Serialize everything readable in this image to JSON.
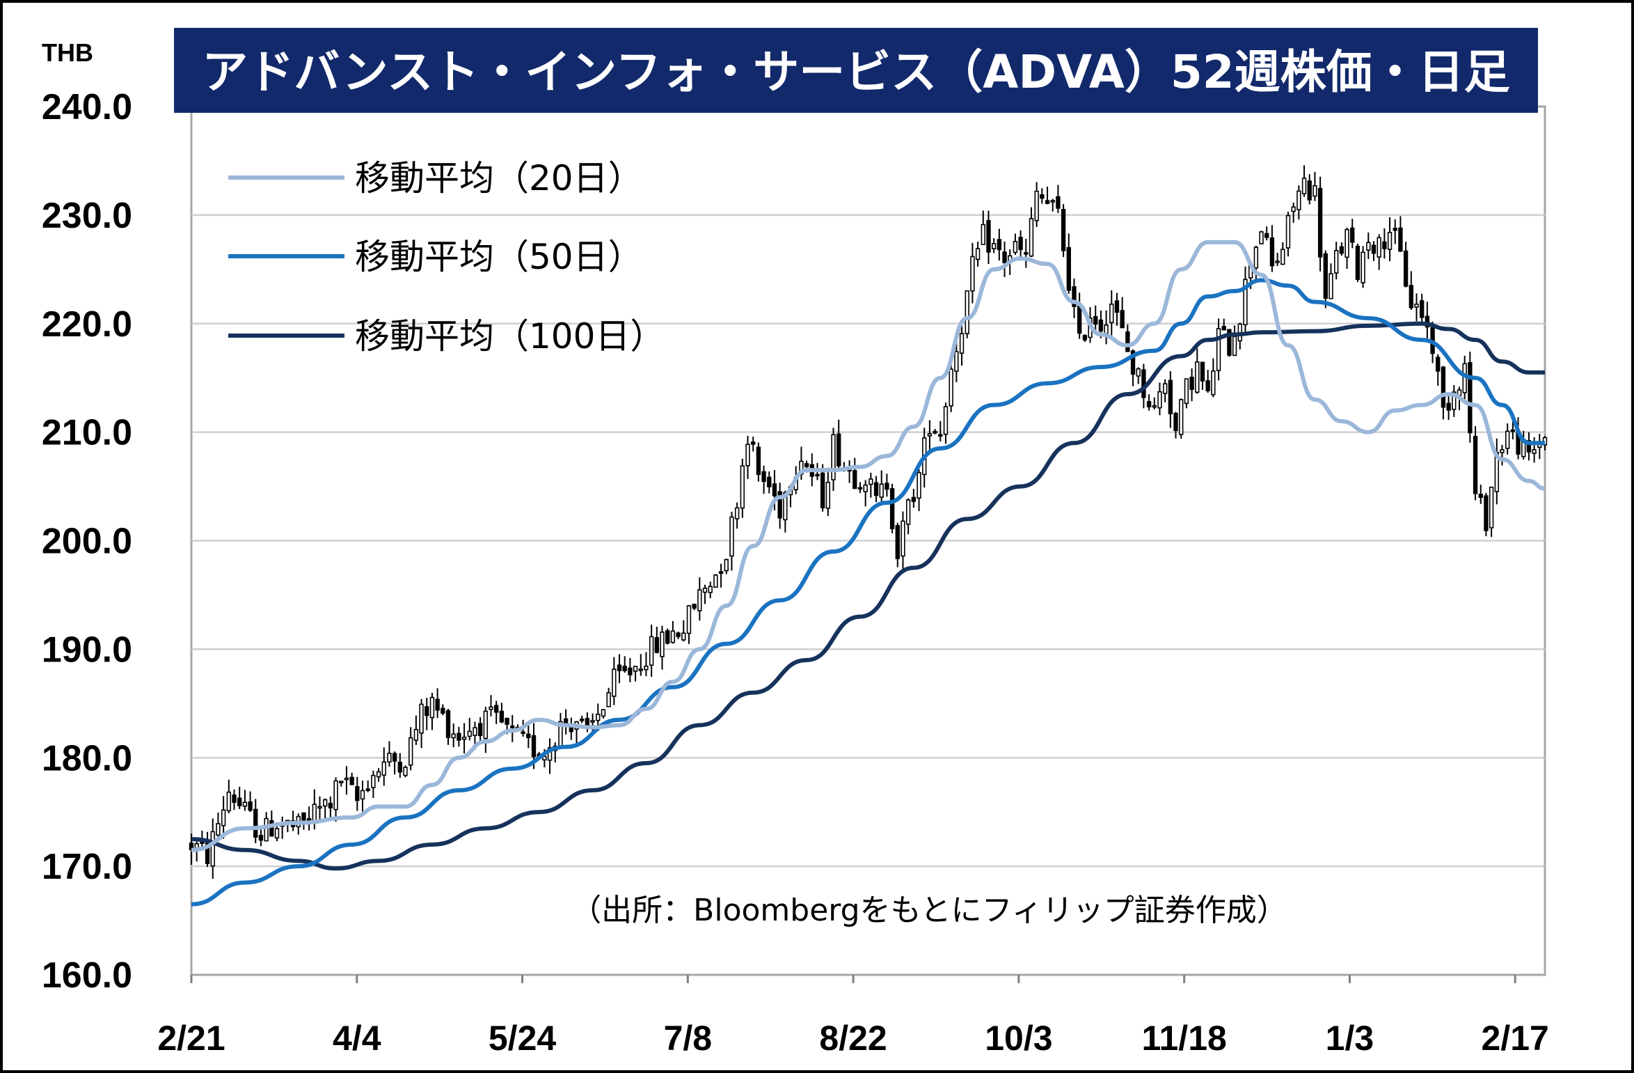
{
  "chart_data": {
    "type": "candlestick",
    "title": "アドバンスト・インフォ・サービス（ADVA）52週株価・日足",
    "unit": "THB",
    "ylim": [
      160,
      240
    ],
    "yticks": [
      "240.0",
      "230.0",
      "220.0",
      "210.0",
      "200.0",
      "190.0",
      "180.0",
      "170.0",
      "160.0"
    ],
    "xticks": [
      "2/21",
      "4/4",
      "5/24",
      "7/8",
      "8/22",
      "10/3",
      "11/18",
      "1/3",
      "2/17"
    ],
    "grid": true,
    "legend_position": "top-left",
    "series": [
      {
        "name": "移動平均（20日）",
        "color": "#9bb7d9",
        "points": [
          [
            0,
            171.5
          ],
          [
            10,
            173.5
          ],
          [
            20,
            174.0
          ],
          [
            30,
            174.5
          ],
          [
            35,
            175.5
          ],
          [
            40,
            175.5
          ],
          [
            45,
            177.5
          ],
          [
            50,
            180.0
          ],
          [
            55,
            181.5
          ],
          [
            60,
            182.5
          ],
          [
            65,
            183.5
          ],
          [
            70,
            183.0
          ],
          [
            75,
            182.8
          ],
          [
            80,
            183.0
          ],
          [
            85,
            184.5
          ],
          [
            90,
            187.0
          ],
          [
            95,
            190.0
          ],
          [
            100,
            194.0
          ],
          [
            105,
            199.5
          ],
          [
            110,
            204.0
          ],
          [
            115,
            206.5
          ],
          [
            120,
            206.5
          ],
          [
            125,
            206.8
          ],
          [
            130,
            207.8
          ],
          [
            135,
            210.5
          ],
          [
            140,
            215.0
          ],
          [
            145,
            220.5
          ],
          [
            150,
            225.0
          ],
          [
            155,
            226.0
          ],
          [
            160,
            225.5
          ],
          [
            165,
            222.0
          ],
          [
            170,
            219.0
          ],
          [
            175,
            218.0
          ],
          [
            180,
            220.0
          ],
          [
            185,
            225.0
          ],
          [
            190,
            227.5
          ],
          [
            195,
            227.5
          ],
          [
            200,
            224.5
          ],
          [
            205,
            218.0
          ],
          [
            210,
            213.0
          ],
          [
            215,
            211.0
          ],
          [
            220,
            210.0
          ],
          [
            225,
            212.0
          ],
          [
            230,
            212.5
          ],
          [
            235,
            213.5
          ],
          [
            240,
            212.5
          ],
          [
            245,
            207.5
          ],
          [
            250,
            205.5
          ],
          [
            253,
            204.8
          ]
        ]
      },
      {
        "name": "移動平均（50日）",
        "color": "#1a73c1",
        "points": [
          [
            0,
            166.5
          ],
          [
            10,
            168.5
          ],
          [
            20,
            170.0
          ],
          [
            30,
            172.0
          ],
          [
            40,
            174.5
          ],
          [
            50,
            177.0
          ],
          [
            60,
            179.0
          ],
          [
            70,
            181.0
          ],
          [
            80,
            183.5
          ],
          [
            90,
            186.5
          ],
          [
            100,
            190.5
          ],
          [
            110,
            194.5
          ],
          [
            120,
            199.0
          ],
          [
            130,
            203.5
          ],
          [
            140,
            208.5
          ],
          [
            150,
            212.5
          ],
          [
            160,
            214.5
          ],
          [
            170,
            216.0
          ],
          [
            180,
            217.5
          ],
          [
            185,
            220.0
          ],
          [
            190,
            222.5
          ],
          [
            195,
            223.0
          ],
          [
            200,
            224.0
          ],
          [
            205,
            223.5
          ],
          [
            210,
            222.0
          ],
          [
            220,
            220.5
          ],
          [
            230,
            218.5
          ],
          [
            240,
            215.0
          ],
          [
            245,
            212.5
          ],
          [
            250,
            209.0
          ],
          [
            253,
            209.0
          ]
        ]
      },
      {
        "name": "移動平均（100日）",
        "color": "#16325c",
        "points": [
          [
            0,
            172.5
          ],
          [
            10,
            171.5
          ],
          [
            20,
            170.5
          ],
          [
            27,
            169.8
          ],
          [
            35,
            170.5
          ],
          [
            45,
            172.0
          ],
          [
            55,
            173.5
          ],
          [
            65,
            175.0
          ],
          [
            75,
            177.0
          ],
          [
            85,
            179.5
          ],
          [
            95,
            183.0
          ],
          [
            105,
            186.0
          ],
          [
            115,
            189.0
          ],
          [
            125,
            193.0
          ],
          [
            135,
            197.5
          ],
          [
            145,
            202.0
          ],
          [
            155,
            205.0
          ],
          [
            165,
            209.0
          ],
          [
            175,
            213.5
          ],
          [
            185,
            217.0
          ],
          [
            190,
            218.5
          ],
          [
            195,
            219.0
          ],
          [
            200,
            219.2
          ],
          [
            210,
            219.3
          ],
          [
            220,
            219.8
          ],
          [
            230,
            220.0
          ],
          [
            235,
            219.5
          ],
          [
            240,
            218.5
          ],
          [
            245,
            216.5
          ],
          [
            250,
            215.5
          ],
          [
            253,
            215.5
          ]
        ]
      }
    ],
    "candles_anchor": [
      [
        0,
        172.0
      ],
      [
        3,
        171.0
      ],
      [
        5,
        174.0
      ],
      [
        7,
        177.0
      ],
      [
        10,
        175.0
      ],
      [
        13,
        173.0
      ],
      [
        16,
        174.0
      ],
      [
        20,
        173.5
      ],
      [
        23,
        175.0
      ],
      [
        26,
        176.0
      ],
      [
        28,
        178.0
      ],
      [
        31,
        176.0
      ],
      [
        33,
        178.0
      ],
      [
        36,
        179.5
      ],
      [
        40,
        180.0
      ],
      [
        43,
        184.0
      ],
      [
        45,
        185.0
      ],
      [
        48,
        183.0
      ],
      [
        50,
        182.0
      ],
      [
        53,
        183.0
      ],
      [
        56,
        183.5
      ],
      [
        58,
        183.0
      ],
      [
        60,
        182.0
      ],
      [
        63,
        181.0
      ],
      [
        66,
        180.5
      ],
      [
        69,
        183.0
      ],
      [
        72,
        183.5
      ],
      [
        74,
        182.0
      ],
      [
        76,
        184.0
      ],
      [
        79,
        187.0
      ],
      [
        82,
        188.0
      ],
      [
        86,
        190.0
      ],
      [
        90,
        191.5
      ],
      [
        92,
        192.0
      ],
      [
        95,
        195.0
      ],
      [
        98,
        197.0
      ],
      [
        100,
        199.0
      ],
      [
        102,
        204.0
      ],
      [
        104,
        210.0
      ],
      [
        106,
        206.0
      ],
      [
        108,
        205.0
      ],
      [
        110,
        203.0
      ],
      [
        112,
        206.0
      ],
      [
        114,
        208.0
      ],
      [
        116,
        206.0
      ],
      [
        118,
        204.0
      ],
      [
        120,
        209.0
      ],
      [
        122,
        207.0
      ],
      [
        124,
        206.0
      ],
      [
        126,
        206.0
      ],
      [
        128,
        203.5
      ],
      [
        130,
        205.5
      ],
      [
        132,
        199.0
      ],
      [
        134,
        203.0
      ],
      [
        136,
        206.0
      ],
      [
        138,
        211.0
      ],
      [
        140,
        210.0
      ],
      [
        142,
        216.0
      ],
      [
        144,
        220.0
      ],
      [
        146,
        225.0
      ],
      [
        148,
        228.0
      ],
      [
        150,
        227.0
      ],
      [
        152,
        226.0
      ],
      [
        154,
        227.0
      ],
      [
        156,
        226.0
      ],
      [
        158,
        232.0
      ],
      [
        160,
        231.0
      ],
      [
        162,
        230.0
      ],
      [
        164,
        224.0
      ],
      [
        166,
        218.0
      ],
      [
        168,
        221.0
      ],
      [
        170,
        220.0
      ],
      [
        172,
        222.0
      ],
      [
        174,
        219.0
      ],
      [
        176,
        216.0
      ],
      [
        178,
        214.0
      ],
      [
        180,
        212.0
      ],
      [
        182,
        215.0
      ],
      [
        184,
        210.0
      ],
      [
        186,
        214.0
      ],
      [
        188,
        216.0
      ],
      [
        190,
        213.0
      ],
      [
        192,
        219.0
      ],
      [
        194,
        218.0
      ],
      [
        196,
        221.0
      ],
      [
        198,
        226.0
      ],
      [
        200,
        229.0
      ],
      [
        202,
        225.0
      ],
      [
        204,
        227.0
      ],
      [
        206,
        231.0
      ],
      [
        208,
        233.0
      ],
      [
        210,
        232.0
      ],
      [
        212,
        222.0
      ],
      [
        214,
        226.0
      ],
      [
        216,
        228.0
      ],
      [
        218,
        225.0
      ],
      [
        220,
        228.0
      ],
      [
        222,
        227.0
      ],
      [
        224,
        229.0
      ],
      [
        226,
        226.0
      ],
      [
        228,
        222.0
      ],
      [
        230,
        221.0
      ],
      [
        232,
        218.0
      ],
      [
        234,
        212.0
      ],
      [
        236,
        214.0
      ],
      [
        238,
        216.0
      ],
      [
        240,
        204.0
      ],
      [
        242,
        202.0
      ],
      [
        244,
        208.0
      ],
      [
        246,
        210.0
      ],
      [
        248,
        209.0
      ],
      [
        250,
        207.5
      ],
      [
        253,
        210.0
      ]
    ],
    "source": "（出所：Bloombergをもとにフィリップ証券作成）"
  }
}
